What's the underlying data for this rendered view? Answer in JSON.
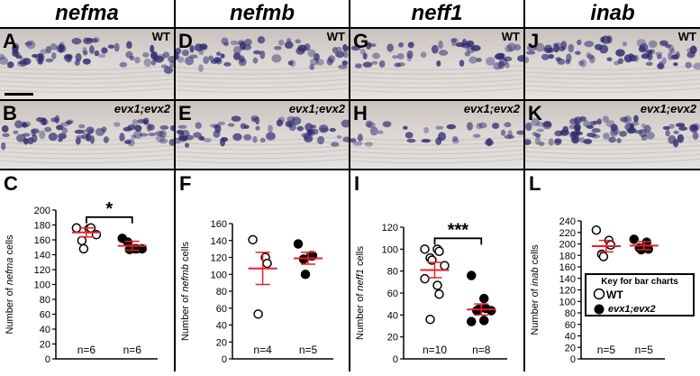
{
  "genes": [
    "nefma",
    "nefmb",
    "neff1",
    "inab"
  ],
  "wt_label": "WT",
  "mutant_label": "evx1;evx2",
  "image_panel_letters": {
    "top": [
      "A",
      "D",
      "G",
      "J"
    ],
    "bottom": [
      "B",
      "E",
      "H",
      "K"
    ]
  },
  "colors": {
    "stain": "#2e2a6e",
    "tissue": "#d9d5d3",
    "mean_bar": "#e8202a",
    "axis": "#000000"
  },
  "key": {
    "title": "Key for bar charts",
    "wt": "WT",
    "mutant": "evx1;evx2"
  },
  "chart_data": [
    {
      "panel": "C",
      "type": "scatter",
      "gene": "nefma",
      "ylabel_prefix": "Number of ",
      "ylabel_suffix": " cells",
      "ylim": [
        0,
        200
      ],
      "yticks": [
        0,
        20,
        40,
        60,
        80,
        100,
        120,
        140,
        160,
        180,
        200
      ],
      "significance": "*",
      "groups": [
        {
          "name": "WT",
          "filled": false,
          "n_label": "n=6",
          "values": [
            176,
            175,
            176,
            159,
            148,
            167
          ],
          "mean": 170,
          "sem_low": 164,
          "sem_high": 176
        },
        {
          "name": "evx1;evx2",
          "filled": true,
          "n_label": "n=6",
          "values": [
            162,
            148,
            148,
            157,
            147,
            148
          ],
          "mean": 152,
          "sem_low": 146,
          "sem_high": 158
        }
      ]
    },
    {
      "panel": "F",
      "type": "scatter",
      "gene": "nefmb",
      "ylabel_prefix": "Number of ",
      "ylabel_suffix": " cells",
      "ylim": [
        0,
        160
      ],
      "yticks": [
        0,
        20,
        40,
        60,
        80,
        100,
        120,
        140,
        160
      ],
      "significance": "",
      "groups": [
        {
          "name": "WT",
          "filled": false,
          "n_label": "n=4",
          "values": [
            141,
            120,
            113,
            53
          ],
          "mean": 107,
          "sem_low": 88,
          "sem_high": 126
        },
        {
          "name": "evx1;evx2",
          "filled": true,
          "n_label": "n=5",
          "values": [
            136,
            122,
            122,
            118,
            100
          ],
          "mean": 119,
          "sem_low": 112,
          "sem_high": 126
        }
      ]
    },
    {
      "panel": "I",
      "type": "scatter",
      "gene": "neff1",
      "ylabel_prefix": "Number of ",
      "ylabel_suffix": " cells",
      "ylim": [
        0,
        120
      ],
      "yticks": [
        0,
        20,
        40,
        60,
        80,
        100,
        120
      ],
      "significance": "***",
      "groups": [
        {
          "name": "WT",
          "filled": false,
          "n_label": "n=10",
          "values": [
            100,
            100,
            98,
            92,
            90,
            85,
            73,
            67,
            59,
            36
          ],
          "mean": 81,
          "sem_low": 74,
          "sem_high": 88
        },
        {
          "name": "evx1;evx2",
          "filled": true,
          "n_label": "n=8",
          "values": [
            76,
            55,
            46,
            44,
            45,
            44,
            34,
            35
          ],
          "mean": 45,
          "sem_low": 40,
          "sem_high": 50
        }
      ]
    },
    {
      "panel": "L",
      "type": "scatter",
      "gene": "inab",
      "ylabel_prefix": "Number of ",
      "ylabel_suffix": " cells",
      "ylim": [
        0,
        240
      ],
      "yticks": [
        0,
        20,
        40,
        60,
        80,
        100,
        120,
        140,
        160,
        180,
        200,
        220,
        240
      ],
      "significance": "",
      "groups": [
        {
          "name": "WT",
          "filled": false,
          "n_label": "n=5",
          "values": [
            224,
            206,
            198,
            182,
            178
          ],
          "mean": 196,
          "sem_low": 186,
          "sem_high": 206
        },
        {
          "name": "evx1;evx2",
          "filled": true,
          "n_label": "n=5",
          "values": [
            208,
            203,
            191,
            193,
            190
          ],
          "mean": 197,
          "sem_low": 190,
          "sem_high": 204
        }
      ]
    }
  ]
}
